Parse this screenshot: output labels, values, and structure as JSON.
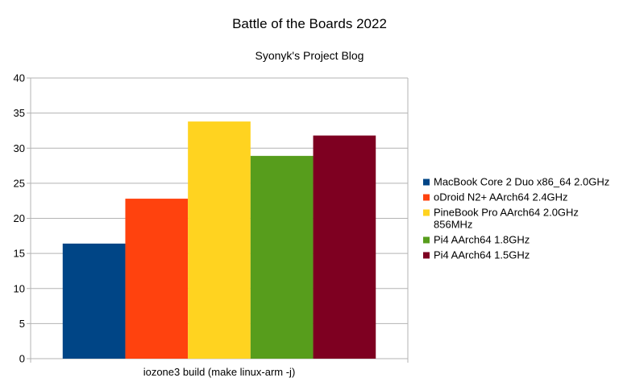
{
  "chart_data": {
    "type": "bar",
    "title": "Battle of the Boards 2022",
    "subtitle": "Syonyk's Project Blog",
    "categories": [
      "iozone3 build (make linux-arm -j)"
    ],
    "xlabel": "",
    "ylabel": "",
    "ylim": [
      0,
      40
    ],
    "yticks": [
      0,
      5,
      10,
      15,
      20,
      25,
      30,
      35,
      40
    ],
    "grid": true,
    "legend_position": "right",
    "series": [
      {
        "name": "MacBook Core 2 Duo x86_64 2.0GHz",
        "values": [
          16.4
        ],
        "color": "#004586"
      },
      {
        "name": "oDroid N2+ AArch64 2.4GHz",
        "values": [
          22.8
        ],
        "color": "#ff420e"
      },
      {
        "name": "PineBook Pro AArch64 2.0GHz 856MHz",
        "values": [
          33.8
        ],
        "color": "#ffd320"
      },
      {
        "name": "Pi4 AArch64 1.8GHz",
        "values": [
          28.9
        ],
        "color": "#579d1c"
      },
      {
        "name": "Pi4 AArch64 1.5GHz",
        "values": [
          31.8
        ],
        "color": "#7e0021"
      }
    ]
  }
}
